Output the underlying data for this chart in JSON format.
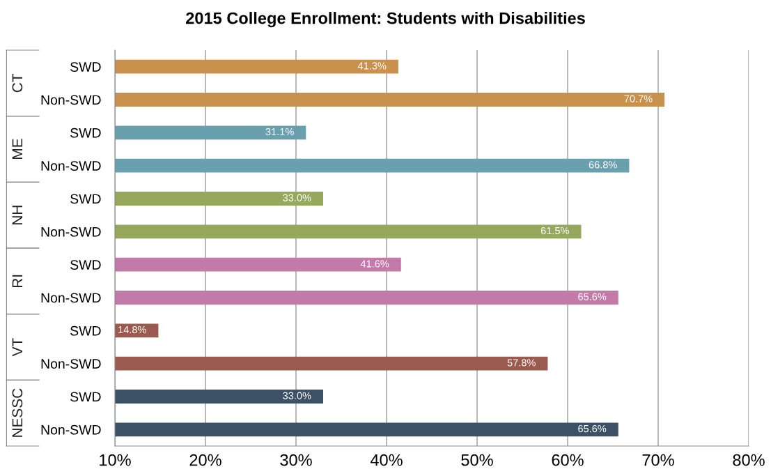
{
  "chart_data": {
    "type": "bar",
    "orientation": "horizontal",
    "title": "2015 College Enrollment: Students with Disabilities",
    "categories": [
      "SWD",
      "Non-SWD",
      "SWD",
      "Non-SWD",
      "SWD",
      "Non-SWD",
      "SWD",
      "Non-SWD",
      "SWD",
      "Non-SWD",
      "SWD",
      "Non-SWD"
    ],
    "series": [
      {
        "name": "CT",
        "color": "#c8924e",
        "values": [
          41.3,
          70.7,
          null,
          null,
          null,
          null,
          null,
          null,
          null,
          null,
          null,
          null
        ],
        "value_labels": [
          "41.3%",
          "70.7%",
          null,
          null,
          null,
          null,
          null,
          null,
          null,
          null,
          null,
          null
        ]
      },
      {
        "name": "ME",
        "color": "#6a9fae",
        "values": [
          null,
          null,
          31.1,
          66.8,
          null,
          null,
          null,
          null,
          null,
          null,
          null,
          null
        ],
        "value_labels": [
          null,
          null,
          "31.1%",
          "66.8%",
          null,
          null,
          null,
          null,
          null,
          null,
          null,
          null
        ]
      },
      {
        "name": "NH",
        "color": "#95a85c",
        "values": [
          null,
          null,
          null,
          null,
          33.0,
          61.5,
          null,
          null,
          null,
          null,
          null,
          null
        ],
        "value_labels": [
          null,
          null,
          null,
          null,
          "33.0%",
          "61.5%",
          null,
          null,
          null,
          null,
          null,
          null
        ]
      },
      {
        "name": "RI",
        "color": "#c27ba8",
        "values": [
          null,
          null,
          null,
          null,
          null,
          null,
          41.6,
          65.6,
          null,
          null,
          null,
          null
        ],
        "value_labels": [
          null,
          null,
          null,
          null,
          null,
          null,
          "41.6%",
          "65.6%",
          null,
          null,
          null,
          null
        ]
      },
      {
        "name": "VT",
        "color": "#9b5a4f",
        "values": [
          null,
          null,
          null,
          null,
          null,
          null,
          null,
          null,
          14.8,
          57.8,
          null,
          null
        ],
        "value_labels": [
          null,
          null,
          null,
          null,
          null,
          null,
          null,
          null,
          "14.8%",
          "57.8%",
          null,
          null
        ]
      },
      {
        "name": "NESSC",
        "color": "#3d5166",
        "values": [
          null,
          null,
          null,
          null,
          null,
          null,
          null,
          null,
          null,
          null,
          33.0,
          65.6
        ],
        "value_labels": [
          null,
          null,
          null,
          null,
          null,
          null,
          null,
          null,
          null,
          null,
          "33.0%",
          "65.6%"
        ]
      }
    ],
    "xlim": [
      10,
      80
    ],
    "xticks": [
      {
        "value": 10,
        "label": "10%"
      },
      {
        "value": 20,
        "label": "20%"
      },
      {
        "value": 30,
        "label": "30%"
      },
      {
        "value": 40,
        "label": "40%"
      },
      {
        "value": 50,
        "label": "50%"
      },
      {
        "value": 60,
        "label": "60%"
      },
      {
        "value": 70,
        "label": "70%"
      },
      {
        "value": 80,
        "label": "80%"
      }
    ],
    "grid": "x",
    "legend": false
  }
}
